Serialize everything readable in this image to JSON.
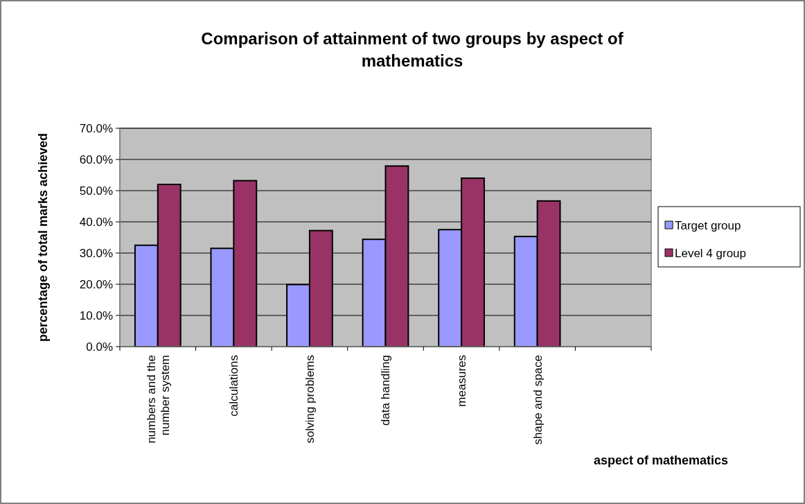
{
  "chart_data": {
    "type": "bar",
    "title": "Comparison of attainment of two groups by aspect of mathematics",
    "xlabel": "aspect of mathematics",
    "ylabel": "percentage of total marks achieved",
    "categories": [
      "numbers and the number system",
      "calculations",
      "solving problems",
      "data handling",
      "measures",
      "shape and space",
      null
    ],
    "series": [
      {
        "name": "Target group",
        "color": "#9999ff",
        "values": [
          32.5,
          31.5,
          19.9,
          34.4,
          37.5,
          35.3,
          null
        ]
      },
      {
        "name": "Level 4 group",
        "color": "#993366",
        "values": [
          52.0,
          53.2,
          37.2,
          57.9,
          54.0,
          46.7,
          null
        ]
      }
    ],
    "ylim": [
      0,
      70
    ],
    "yticks": [
      {
        "value": 0,
        "label": "0.0%"
      },
      {
        "value": 10,
        "label": "10.0%"
      },
      {
        "value": 20,
        "label": "20.0%"
      },
      {
        "value": 30,
        "label": "30.0%"
      },
      {
        "value": 40,
        "label": "40.0%"
      },
      {
        "value": 50,
        "label": "50.0%"
      },
      {
        "value": 60,
        "label": "60.0%"
      },
      {
        "value": 70,
        "label": "70.0%"
      }
    ],
    "grid": "y",
    "legend": "right"
  }
}
